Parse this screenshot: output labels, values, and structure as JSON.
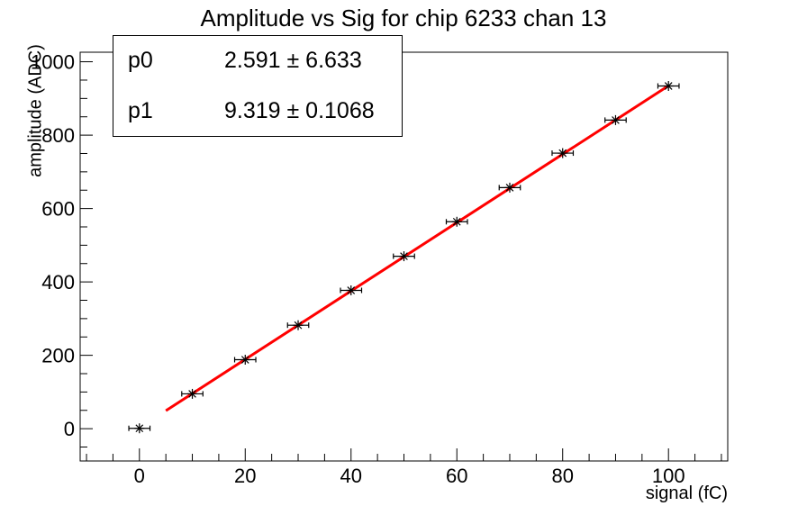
{
  "canvas": {
    "background": "#ffffff"
  },
  "stats_box": {
    "rows": [
      {
        "param": "p0",
        "value": "2.591 ± 6.633"
      },
      {
        "param": "p1",
        "value": "9.319 ± 0.1068"
      }
    ]
  },
  "chart_data": {
    "type": "scatter",
    "title": "Amplitude vs Sig for chip 6233 chan 13",
    "xlabel": "signal (fC)",
    "ylabel": "amplitude (ADC)",
    "x": [
      0,
      10,
      20,
      30,
      40,
      50,
      60,
      70,
      80,
      90,
      100
    ],
    "y": [
      1,
      95,
      188,
      282,
      377,
      470,
      564,
      657,
      751,
      841,
      934
    ],
    "x_err": 2,
    "marker": "star-8-spoke",
    "marker_color": "#000000",
    "axis_color": "#000000",
    "grid": false,
    "legend": "none",
    "xlim": [
      -11.2,
      111.2
    ],
    "ylim": [
      -88,
      1026
    ],
    "x_major_ticks": [
      0,
      20,
      40,
      60,
      80,
      100
    ],
    "x_minor_step": 5,
    "y_major_ticks": [
      0,
      200,
      400,
      600,
      800,
      1000
    ],
    "y_minor_step": 50,
    "fit_line": {
      "p0": 2.591,
      "p1": 9.319,
      "x_start": 5,
      "x_end": 100,
      "color": "#ff0000"
    }
  }
}
